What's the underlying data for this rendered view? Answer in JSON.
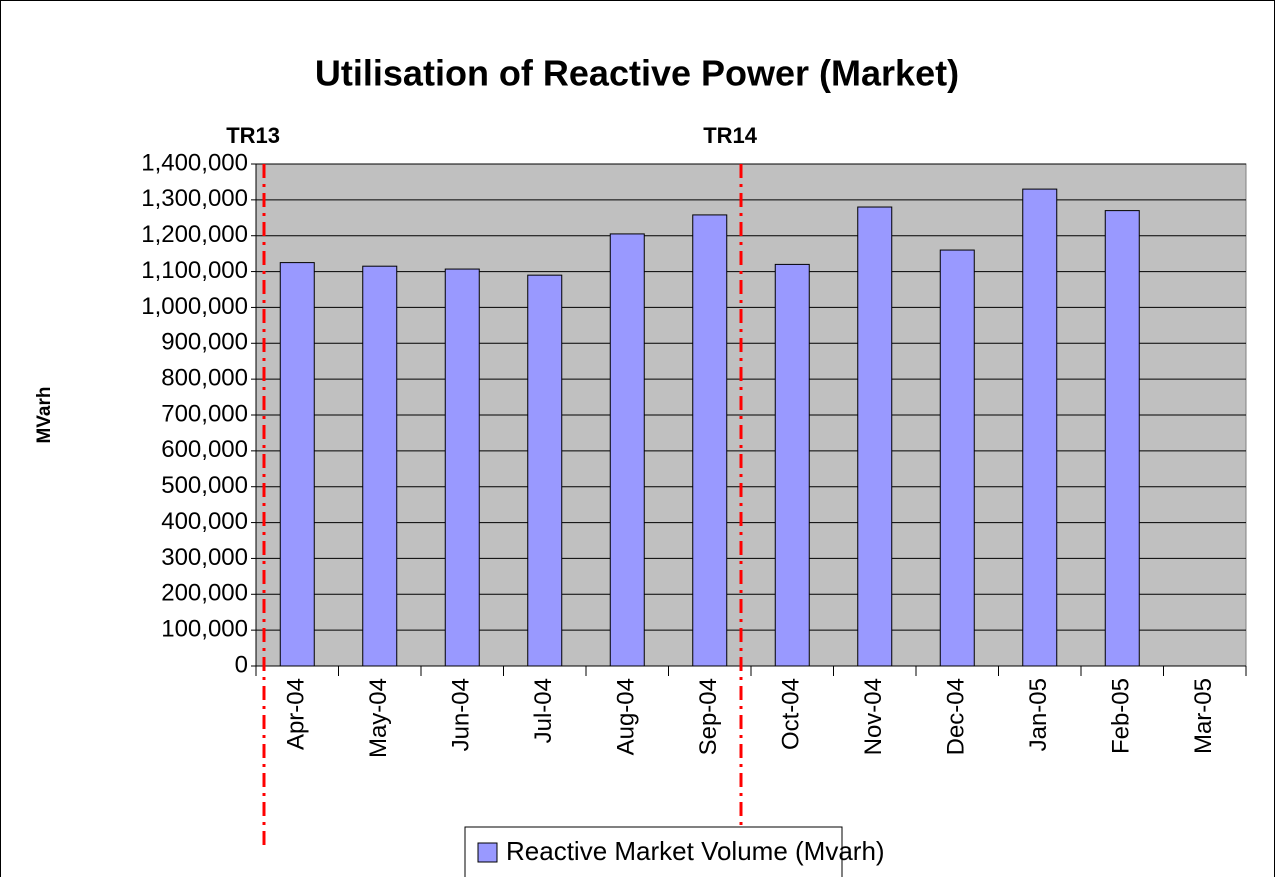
{
  "chart_data": {
    "type": "bar",
    "title": "Utilisation of Reactive Power (Market)",
    "y_label": "MVarh",
    "categories": [
      "Apr-04",
      "May-04",
      "Jun-04",
      "Jul-04",
      "Aug-04",
      "Sep-04",
      "Oct-04",
      "Nov-04",
      "Dec-04",
      "Jan-05",
      "Feb-05",
      "Mar-05"
    ],
    "series": [
      {
        "name": "Reactive Market Volume (Mvarh)",
        "color": "#9999ff",
        "values": [
          1125000,
          1115000,
          1107000,
          1090000,
          1205000,
          1258000,
          1120000,
          1280000,
          1160000,
          1330000,
          1270000,
          null
        ]
      }
    ],
    "ylim": [
      0,
      1400000
    ],
    "yticks": [
      0,
      {
        "value": 100000,
        "label": "100,000"
      },
      {
        "value": 200000,
        "label": "200,000"
      },
      {
        "value": 300000,
        "label": "300,000"
      },
      {
        "value": 400000,
        "label": "400,000"
      },
      {
        "value": 500000,
        "label": "500,000"
      },
      {
        "value": 600000,
        "label": "600,000"
      },
      {
        "value": 700000,
        "label": "700,000"
      },
      {
        "value": 800000,
        "label": "800,000"
      },
      {
        "value": 900000,
        "label": "900,000"
      },
      {
        "value": 1000000,
        "label": "1,000,000"
      },
      {
        "value": 1100000,
        "label": "1,100,000"
      },
      {
        "value": 1200000,
        "label": "1,200,000"
      },
      {
        "value": 1300000,
        "label": "1,300,000"
      },
      {
        "value": 1400000,
        "label": "1,400,000"
      }
    ],
    "grid": true,
    "annotations": [
      {
        "text": "TR13",
        "category": "Apr-04"
      },
      {
        "text": "TR14",
        "category": "Oct-04"
      }
    ],
    "legend": "bottom"
  }
}
